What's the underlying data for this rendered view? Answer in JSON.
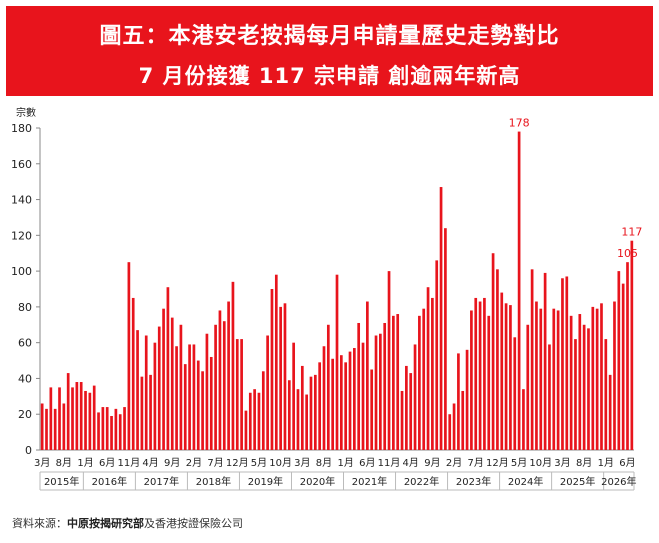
{
  "header": {
    "title_line1": "圖五：本港安老按揭每月申請量歷史走勢對比",
    "title_line2": "7 月份接獲 117 宗申請 創逾兩年新高"
  },
  "source": {
    "label": "資料來源：",
    "org": "中原按揭研究部",
    "rest": "及香港按證保險公司"
  },
  "colors": {
    "bar": "#e8141c",
    "header_bg": "#e8141c",
    "annotation": "#e8141c"
  },
  "chart_data": {
    "type": "bar",
    "title": "",
    "ylabel": "宗數",
    "xlabel": "",
    "ylim": [
      0,
      180
    ],
    "yticks": [
      0,
      20,
      40,
      60,
      80,
      100,
      120,
      140,
      160,
      180
    ],
    "grid": false,
    "start_month": "2015-03",
    "values": [
      26,
      23,
      35,
      23,
      35,
      26,
      43,
      35,
      38,
      38,
      33,
      32,
      36,
      21,
      24,
      24,
      19,
      23,
      20,
      24,
      105,
      85,
      67,
      41,
      64,
      42,
      60,
      69,
      79,
      91,
      74,
      58,
      70,
      48,
      59,
      59,
      50,
      44,
      65,
      52,
      70,
      78,
      72,
      83,
      94,
      62,
      62,
      22,
      32,
      34,
      32,
      44,
      64,
      90,
      98,
      80,
      82,
      39,
      60,
      34,
      47,
      31,
      41,
      42,
      49,
      58,
      70,
      51,
      98,
      53,
      49,
      55,
      57,
      71,
      60,
      83,
      45,
      64,
      65,
      71,
      100,
      75,
      76,
      33,
      47,
      43,
      59,
      75,
      79,
      91,
      85,
      106,
      147,
      124,
      20,
      26,
      54,
      33,
      56,
      78,
      85,
      83,
      85,
      75,
      110,
      101,
      88,
      82,
      81,
      63,
      178,
      34,
      70,
      101,
      83,
      79,
      99,
      59,
      79,
      78,
      96,
      97,
      75,
      62,
      76,
      70,
      68,
      80,
      79,
      82,
      62,
      42,
      83,
      100,
      93,
      105,
      117
    ],
    "annotations": [
      {
        "month": "2024-05",
        "value": 178,
        "label": "178"
      },
      {
        "month": "2026-06",
        "value": 105,
        "label": "105"
      },
      {
        "month": "2026-07",
        "value": 117,
        "label": "117"
      }
    ],
    "month_tick_labels": [
      {
        "month": "2015-03",
        "label": "3月"
      },
      {
        "month": "2015-08",
        "label": "8月"
      },
      {
        "month": "2016-01",
        "label": "1月"
      },
      {
        "month": "2016-06",
        "label": "6月"
      },
      {
        "month": "2016-11",
        "label": "11月"
      },
      {
        "month": "2017-04",
        "label": "4月"
      },
      {
        "month": "2017-09",
        "label": "9月"
      },
      {
        "month": "2018-02",
        "label": "2月"
      },
      {
        "month": "2018-07",
        "label": "7月"
      },
      {
        "month": "2018-12",
        "label": "12月"
      },
      {
        "month": "2019-05",
        "label": "5月"
      },
      {
        "month": "2019-10",
        "label": "10月"
      },
      {
        "month": "2020-03",
        "label": "3月"
      },
      {
        "month": "2020-08",
        "label": "8月"
      },
      {
        "month": "2021-01",
        "label": "1月"
      },
      {
        "month": "2021-06",
        "label": "6月"
      },
      {
        "month": "2021-11",
        "label": "11月"
      },
      {
        "month": "2022-04",
        "label": "4月"
      },
      {
        "month": "2022-09",
        "label": "9月"
      },
      {
        "month": "2023-02",
        "label": "2月"
      },
      {
        "month": "2023-07",
        "label": "7月"
      },
      {
        "month": "2023-12",
        "label": "12月"
      },
      {
        "month": "2024-05",
        "label": "5月"
      },
      {
        "month": "2024-10",
        "label": "10月"
      },
      {
        "month": "2025-03",
        "label": "3月"
      },
      {
        "month": "2025-08",
        "label": "8月"
      },
      {
        "month": "2026-01",
        "label": "1月"
      },
      {
        "month": "2026-06",
        "label": "6月"
      }
    ],
    "years": [
      "2015年",
      "2016年",
      "2017年",
      "2018年",
      "2019年",
      "2020年",
      "2021年",
      "2022年",
      "2023年",
      "2024年",
      "2025年",
      "2026年"
    ]
  }
}
